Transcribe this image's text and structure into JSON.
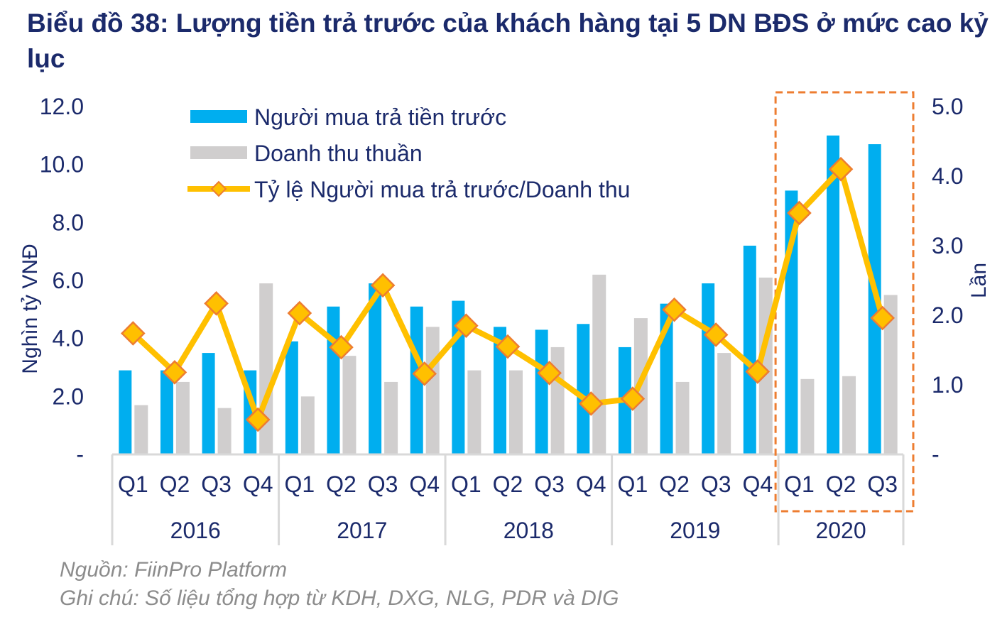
{
  "title": "Biểu đồ 38: Lượng tiền trả trước của khách hàng tại 5 DN BĐS ở mức cao kỷ lục",
  "source": "Nguồn: FiinPro Platform",
  "note": "Ghi chú: Số liệu tổng hợp từ KDH, DXG, NLG, PDR và DIG",
  "chart_data": {
    "type": "bar+line",
    "title": "Biểu đồ 38: Lượng tiền trả trước của khách hàng tại 5 DN BĐS ở mức cao kỷ lục",
    "categories": [
      "Q1",
      "Q2",
      "Q3",
      "Q4",
      "Q1",
      "Q2",
      "Q3",
      "Q4",
      "Q1",
      "Q2",
      "Q3",
      "Q4",
      "Q1",
      "Q2",
      "Q3",
      "Q4",
      "Q1",
      "Q2",
      "Q3"
    ],
    "groups": [
      {
        "label": "2016",
        "count": 4
      },
      {
        "label": "2017",
        "count": 4
      },
      {
        "label": "2018",
        "count": 4
      },
      {
        "label": "2019",
        "count": 4
      },
      {
        "label": "2020",
        "count": 3
      }
    ],
    "ylabel": "Nghìn tỷ VNĐ",
    "y2label": "Lần",
    "ylim": [
      0,
      12
    ],
    "y2lim": [
      0,
      5
    ],
    "yticks": [
      "-",
      "2.0",
      "4.0",
      "6.0",
      "8.0",
      "10.0",
      "12.0"
    ],
    "y2ticks": [
      "-",
      "1.0",
      "2.0",
      "3.0",
      "4.0",
      "5.0"
    ],
    "legend_position": "top-left",
    "highlight_group": "2020",
    "series": [
      {
        "name": "Người mua trả tiền trước",
        "type": "bar",
        "axis": "left",
        "color": "#00aeef",
        "values": [
          2.9,
          2.9,
          3.5,
          2.9,
          3.9,
          5.1,
          5.9,
          5.1,
          5.3,
          4.4,
          4.3,
          4.5,
          3.7,
          5.2,
          5.9,
          7.2,
          9.1,
          11.0,
          10.7
        ]
      },
      {
        "name": "Doanh thu thuần",
        "type": "bar",
        "axis": "left",
        "color": "#d0cece",
        "values": [
          1.7,
          2.5,
          1.6,
          5.9,
          2.0,
          3.4,
          2.5,
          4.4,
          2.9,
          2.9,
          3.7,
          6.2,
          4.7,
          2.5,
          3.5,
          6.1,
          2.6,
          2.7,
          5.5
        ]
      },
      {
        "name": "Tỷ lệ Người mua trả trước/Doanh thu",
        "type": "line",
        "axis": "right",
        "color": "#ffc000",
        "marker_color": "#ed7d31",
        "values": [
          1.74,
          1.18,
          2.17,
          0.5,
          2.03,
          1.54,
          2.43,
          1.16,
          1.85,
          1.55,
          1.17,
          0.73,
          0.8,
          2.08,
          1.72,
          1.19,
          3.47,
          4.1,
          1.96
        ]
      }
    ]
  }
}
